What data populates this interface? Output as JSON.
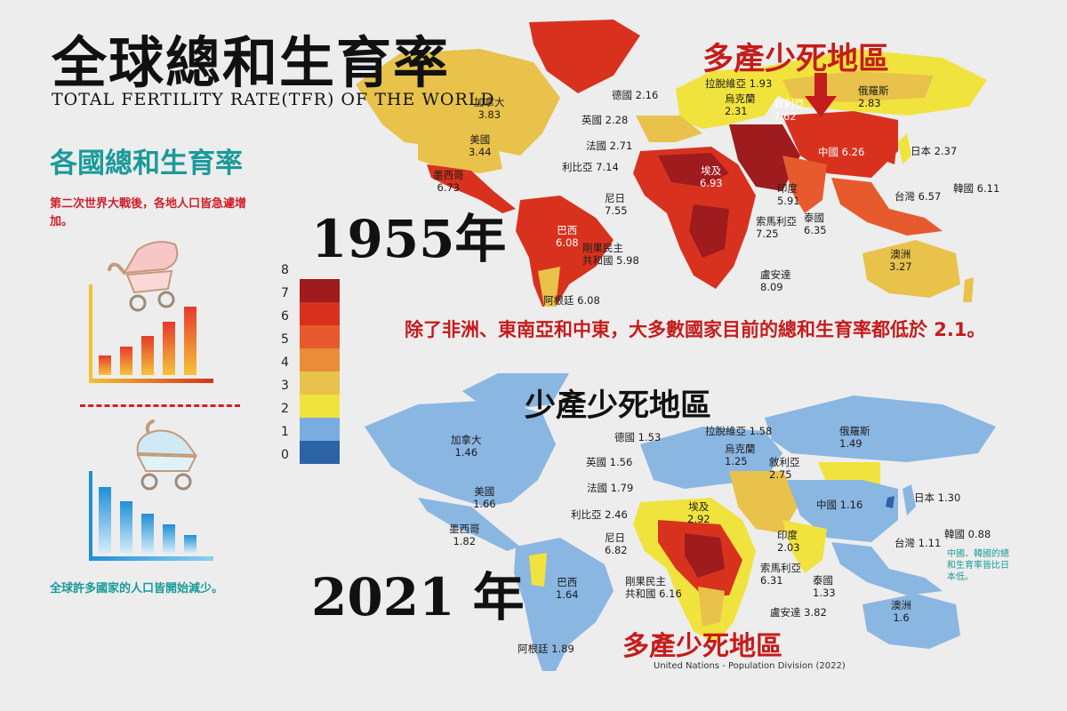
{
  "title": "全球總和生育率",
  "subtitle": "TOTAL FERTILITY RATE(TFR) OF THE WORLD",
  "section_title": "各國總和生育率",
  "postwar_note": "第二次世界大戰後，各地人口皆急遽增加。",
  "decline_note": "全球許多國家的人口皆開始減少。",
  "year_1955": "1955年",
  "year_2021": "2021 年",
  "high_birth_label_top": "多產少死地區",
  "low_birth_label": "少產少死地區",
  "high_birth_label_bottom": "多產少死地區",
  "callout": "除了非洲、東南亞和中東，大多數國家目前的總和生育率都低於 2.1。",
  "east_asia_note": "中國、韓國的總和生育率皆比日本低。",
  "source": "United Nations - Population Division (2022)",
  "legend": {
    "ticks": [
      "8",
      "7",
      "6",
      "5",
      "4",
      "3",
      "2",
      "1",
      "0"
    ],
    "colors": [
      "#9e1b1e",
      "#d8321f",
      "#e65a2d",
      "#ea8c3a",
      "#e8c24a",
      "#f1e33e",
      "#79acdf",
      "#2b63a6"
    ]
  },
  "colors": {
    "ocean": "#ededed",
    "high_land": "#d64428",
    "low_land": "#8ab6e2",
    "accent_red": "#c51c1c",
    "accent_teal": "#1a9a9a"
  },
  "labels_1955": {
    "canada": "加拿大\n3.83",
    "usa": "美國\n3.44",
    "mexico": "墨西哥\n6.73",
    "brazil": "巴西\n6.08",
    "argentina": "阿根廷 6.08",
    "germany": "德國 2.16",
    "uk": "英國 2.28",
    "france": "法國 2.71",
    "libya": "利比亞 7.14",
    "niger": "尼日\n7.55",
    "congo": "剛果民主\n共和國 5.98",
    "latvia": "拉脫維亞 1.93",
    "ukraine": "烏克蘭\n2.31",
    "syria": "敘利亞\n7.62",
    "egypt": "埃及\n6.93",
    "somalia": "索馬利亞\n7.25",
    "uganda": "盧安達\n8.09",
    "russia": "俄羅斯\n2.83",
    "china": "中國 6.26",
    "india": "印度\n5.91",
    "thailand": "泰國\n6.35",
    "japan": "日本 2.37",
    "korea": "韓國 6.11",
    "taiwan": "台灣 6.57",
    "australia": "澳洲\n3.27"
  },
  "labels_2021": {
    "canada": "加拿大\n1.46",
    "usa": "美國\n1.66",
    "mexico": "墨西哥\n1.82",
    "brazil": "巴西\n1.64",
    "argentina": "阿根廷 1.89",
    "germany": "德國 1.53",
    "uk": "英國 1.56",
    "france": "法國 1.79",
    "libya": "利比亞 2.46",
    "niger": "尼日\n6.82",
    "congo": "剛果民主\n共和國 6.16",
    "latvia": "拉脫維亞 1.58",
    "ukraine": "烏克蘭\n1.25",
    "syria": "敘利亞\n2.75",
    "egypt": "埃及\n2.92",
    "somalia": "索馬利亞\n6.31",
    "uganda": "盧安達 3.82",
    "russia": "俄羅斯\n1.49",
    "china": "中國 1.16",
    "india": "印度\n2.03",
    "thailand": "泰國\n1.33",
    "japan": "日本 1.30",
    "korea": "韓國 0.88",
    "taiwan": "台灣 1.11",
    "australia": "澳洲\n1.6"
  }
}
